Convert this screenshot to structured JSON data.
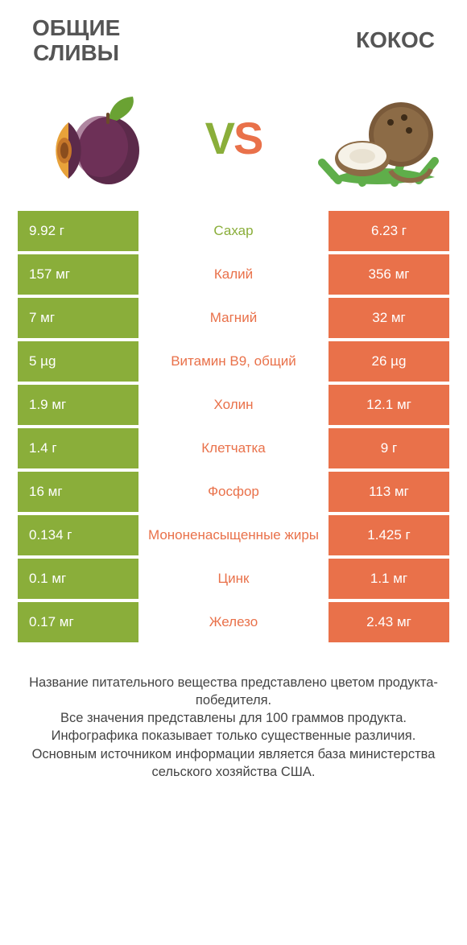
{
  "colors": {
    "left": "#8aae3a",
    "right": "#e9714a",
    "bg": "#ffffff",
    "title": "#555555",
    "footer": "#444444"
  },
  "leftTitle": "ОБЩИЕ\nСЛИВЫ",
  "rightTitle": "КОКОС",
  "vsV": "V",
  "vsS": "S",
  "rows": [
    {
      "left": "9.92 г",
      "label": "Сахар",
      "right": "6.23 г",
      "winner": "left"
    },
    {
      "left": "157 мг",
      "label": "Калий",
      "right": "356 мг",
      "winner": "right"
    },
    {
      "left": "7 мг",
      "label": "Магний",
      "right": "32 мг",
      "winner": "right"
    },
    {
      "left": "5 µg",
      "label": "Витамин B9, общий",
      "right": "26 µg",
      "winner": "right"
    },
    {
      "left": "1.9 мг",
      "label": "Холин",
      "right": "12.1 мг",
      "winner": "right"
    },
    {
      "left": "1.4 г",
      "label": "Клетчатка",
      "right": "9 г",
      "winner": "right"
    },
    {
      "left": "16 мг",
      "label": "Фосфор",
      "right": "113 мг",
      "winner": "right"
    },
    {
      "left": "0.134 г",
      "label": "Мононенасыщенные жиры",
      "right": "1.425 г",
      "winner": "right"
    },
    {
      "left": "0.1 мг",
      "label": "Цинк",
      "right": "1.1 мг",
      "winner": "right"
    },
    {
      "left": "0.17 мг",
      "label": "Железо",
      "right": "2.43 мг",
      "winner": "right"
    }
  ],
  "footer": "Название питательного вещества представлено цветом продукта-победителя.\nВсе значения представлены для 100 граммов продукта.\nИнфографика показывает только существенные различия.\nОсновным источником информации является база министерства сельского хозяйства США."
}
